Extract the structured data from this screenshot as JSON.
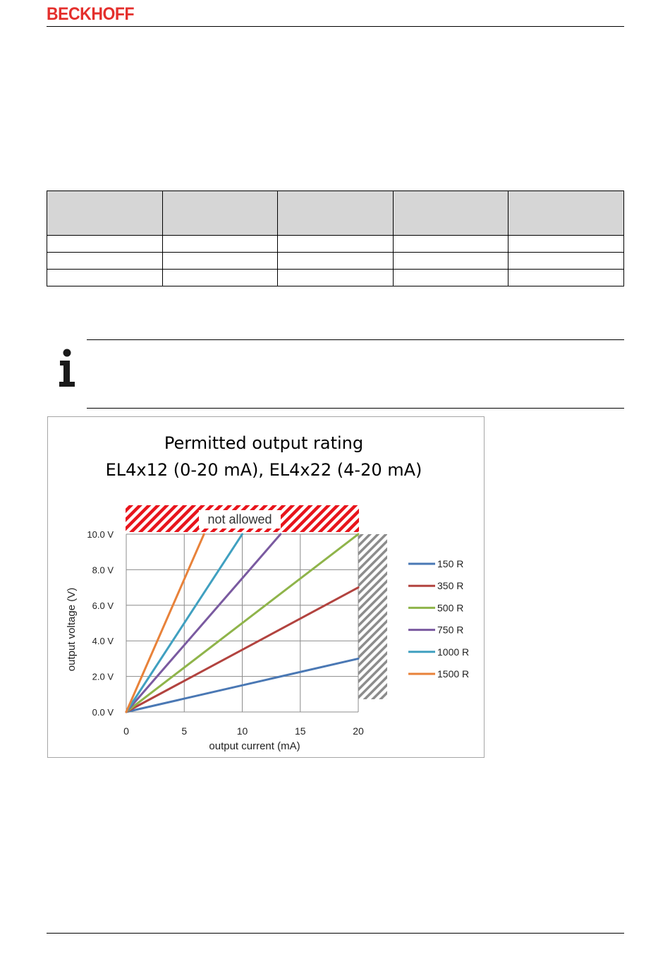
{
  "header": {
    "logo_text": "BECKHOFF",
    "brand_color": "#e42f2c"
  },
  "table": {
    "columns": [
      "",
      "",
      "",
      "",
      ""
    ],
    "rows": [
      [
        "",
        "",
        "",
        "",
        ""
      ],
      [
        "",
        "",
        "",
        "",
        ""
      ],
      [
        "",
        "",
        "",
        "",
        ""
      ]
    ]
  },
  "note": {
    "icon": "info-icon"
  },
  "chart_data": {
    "type": "line",
    "title": [
      "Permitted output rating",
      "EL4x12 (0-20 mA), EL4x22 (4-20 mA)"
    ],
    "xlabel": "output current (mA)",
    "ylabel": "output voltage (V)",
    "xlim": [
      0,
      20
    ],
    "ylim": [
      0,
      10
    ],
    "xticks": [
      "0",
      "5",
      "10",
      "15",
      "20"
    ],
    "yticks": [
      "0.0 V",
      "2.0 V",
      "4.0 V",
      "6.0 V",
      "8.0 V",
      "10.0 V"
    ],
    "grid": true,
    "legend_position": "right",
    "annotation": "not allowed",
    "series": [
      {
        "name": "150 R",
        "color": "#4a78b4",
        "x": [
          0,
          20
        ],
        "y": [
          0,
          3.0
        ]
      },
      {
        "name": "350 R",
        "color": "#b2433f",
        "x": [
          0,
          20
        ],
        "y": [
          0,
          7.0
        ]
      },
      {
        "name": "500 R",
        "color": "#8fb44a",
        "x": [
          0,
          20
        ],
        "y": [
          0,
          10.0
        ]
      },
      {
        "name": "750 R",
        "color": "#7a5aa0",
        "x": [
          0,
          13.3
        ],
        "y": [
          0,
          10.0
        ]
      },
      {
        "name": "1000 R",
        "color": "#40a0c0",
        "x": [
          0,
          10
        ],
        "y": [
          0,
          10.0
        ]
      },
      {
        "name": "1500 R",
        "color": "#e8823a",
        "x": [
          0,
          6.7
        ],
        "y": [
          0,
          10.0
        ]
      }
    ]
  }
}
